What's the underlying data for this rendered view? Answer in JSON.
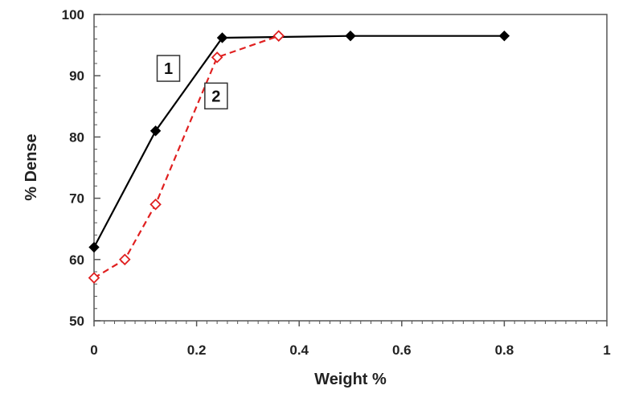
{
  "chart_data": {
    "type": "line",
    "title": "",
    "xlabel": "Weight %",
    "ylabel": "% Dense",
    "xlim": [
      0,
      1
    ],
    "ylim": [
      50,
      100
    ],
    "x_ticks": [
      0,
      0.2,
      0.4,
      0.6,
      0.8,
      1
    ],
    "x_tick_labels": [
      "0",
      "0.2",
      "0.4",
      "0.6",
      "0.8",
      "1"
    ],
    "y_ticks": [
      50,
      60,
      70,
      80,
      90,
      100
    ],
    "y_tick_labels": [
      "50",
      "60",
      "70",
      "80",
      "90",
      "100"
    ],
    "grid": false,
    "series": [
      {
        "name": "1",
        "color": "#000000",
        "line_style": "solid",
        "marker": "filled-diamond",
        "points": [
          [
            0,
            62
          ],
          [
            0.12,
            81
          ],
          [
            0.25,
            96.2
          ],
          [
            0.5,
            96.5
          ],
          [
            0.8,
            96.5
          ]
        ]
      },
      {
        "name": "2",
        "color": "#e02020",
        "line_style": "dashed",
        "marker": "open-diamond",
        "points": [
          [
            0,
            57
          ],
          [
            0.06,
            60
          ],
          [
            0.12,
            69
          ],
          [
            0.24,
            93
          ],
          [
            0.36,
            96.5
          ]
        ]
      }
    ],
    "annotations": [
      {
        "text": "1",
        "series_index": 0,
        "anchor": [
          0.145,
          91.2
        ]
      },
      {
        "text": "2",
        "series_index": 1,
        "anchor": [
          0.238,
          86.7
        ]
      }
    ]
  }
}
